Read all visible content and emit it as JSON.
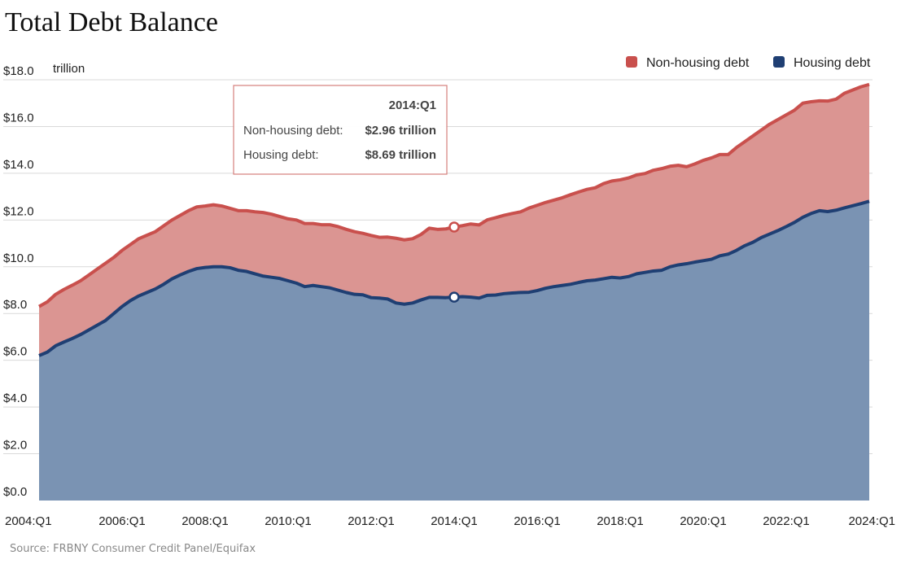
{
  "colors": {
    "non_housing_line": "#C9504D",
    "non_housing_fill": "#DB9592",
    "housing_line": "#1F3F73",
    "housing_fill": "#7A93B3",
    "grid": "#d9d9d9"
  },
  "source": "Source: FRBNY Consumer Credit Panel/Equifax",
  "unit_label": "trillion",
  "tooltip": {
    "header": "2014:Q1",
    "rows": [
      {
        "label": "Non-housing debt:",
        "value": "$2.96 trillion"
      },
      {
        "label": "Housing debt:",
        "value": "$8.69 trillion"
      }
    ]
  },
  "chart_data": {
    "type": "area",
    "title": "Total Debt Balance",
    "xlabel": "",
    "ylabel": "",
    "stacked": true,
    "legend_position": "top-right",
    "grid": true,
    "ylim": [
      0,
      18
    ],
    "yticks": [
      "$0.0",
      "$2.0",
      "$4.0",
      "$6.0",
      "$8.0",
      "$10.0",
      "$12.0",
      "$14.0",
      "$16.0",
      "$18.0"
    ],
    "xticks": [
      "2004:Q1",
      "2006:Q1",
      "2008:Q1",
      "2010:Q1",
      "2012:Q1",
      "2014:Q1",
      "2016:Q1",
      "2018:Q1",
      "2020:Q1",
      "2022:Q1",
      "2024:Q1"
    ],
    "x_start": "2004:Q1",
    "x_end": "2024:Q1",
    "highlight": "2014:Q1",
    "series": [
      {
        "name": "Housing debt",
        "values": [
          6.2,
          6.35,
          6.62,
          6.78,
          6.93,
          7.1,
          7.3,
          7.5,
          7.7,
          8.0,
          8.3,
          8.55,
          8.75,
          8.9,
          9.05,
          9.25,
          9.48,
          9.65,
          9.8,
          9.92,
          9.97,
          10.0,
          10.0,
          9.96,
          9.85,
          9.8,
          9.7,
          9.6,
          9.55,
          9.5,
          9.4,
          9.3,
          9.15,
          9.2,
          9.15,
          9.1,
          9.0,
          8.9,
          8.82,
          8.8,
          8.68,
          8.66,
          8.62,
          8.45,
          8.4,
          8.45,
          8.58,
          8.69,
          8.69,
          8.68,
          8.7,
          8.72,
          8.7,
          8.66,
          8.78,
          8.79,
          8.85,
          8.88,
          8.9,
          8.91,
          8.98,
          9.08,
          9.15,
          9.2,
          9.25,
          9.33,
          9.4,
          9.43,
          9.49,
          9.55,
          9.52,
          9.58,
          9.7,
          9.76,
          9.82,
          9.85,
          10.0,
          10.08,
          10.13,
          10.2,
          10.26,
          10.32,
          10.47,
          10.54,
          10.7,
          10.9,
          11.05,
          11.25,
          11.4,
          11.55,
          11.72,
          11.9,
          12.12,
          12.28,
          12.4,
          12.36,
          12.42,
          12.52,
          12.61,
          12.7,
          12.8
        ]
      },
      {
        "name": "Non-housing debt",
        "values": [
          2.1,
          2.15,
          2.2,
          2.25,
          2.28,
          2.3,
          2.35,
          2.4,
          2.45,
          2.4,
          2.4,
          2.4,
          2.45,
          2.45,
          2.45,
          2.5,
          2.52,
          2.55,
          2.6,
          2.64,
          2.63,
          2.65,
          2.6,
          2.54,
          2.55,
          2.6,
          2.65,
          2.72,
          2.7,
          2.65,
          2.65,
          2.7,
          2.7,
          2.65,
          2.65,
          2.7,
          2.72,
          2.7,
          2.68,
          2.63,
          2.66,
          2.6,
          2.65,
          2.77,
          2.75,
          2.75,
          2.8,
          2.96,
          2.91,
          2.94,
          3.0,
          3.04,
          3.13,
          3.13,
          3.23,
          3.31,
          3.35,
          3.4,
          3.45,
          3.6,
          3.65,
          3.67,
          3.7,
          3.75,
          3.83,
          3.87,
          3.91,
          3.95,
          4.07,
          4.12,
          4.2,
          4.22,
          4.23,
          4.23,
          4.31,
          4.35,
          4.3,
          4.26,
          4.15,
          4.2,
          4.29,
          4.34,
          4.33,
          4.26,
          4.4,
          4.45,
          4.55,
          4.6,
          4.7,
          4.75,
          4.78,
          4.8,
          4.88,
          4.78,
          4.7,
          4.73,
          4.75,
          4.9,
          4.95,
          5.0,
          5.0
        ]
      }
    ]
  }
}
